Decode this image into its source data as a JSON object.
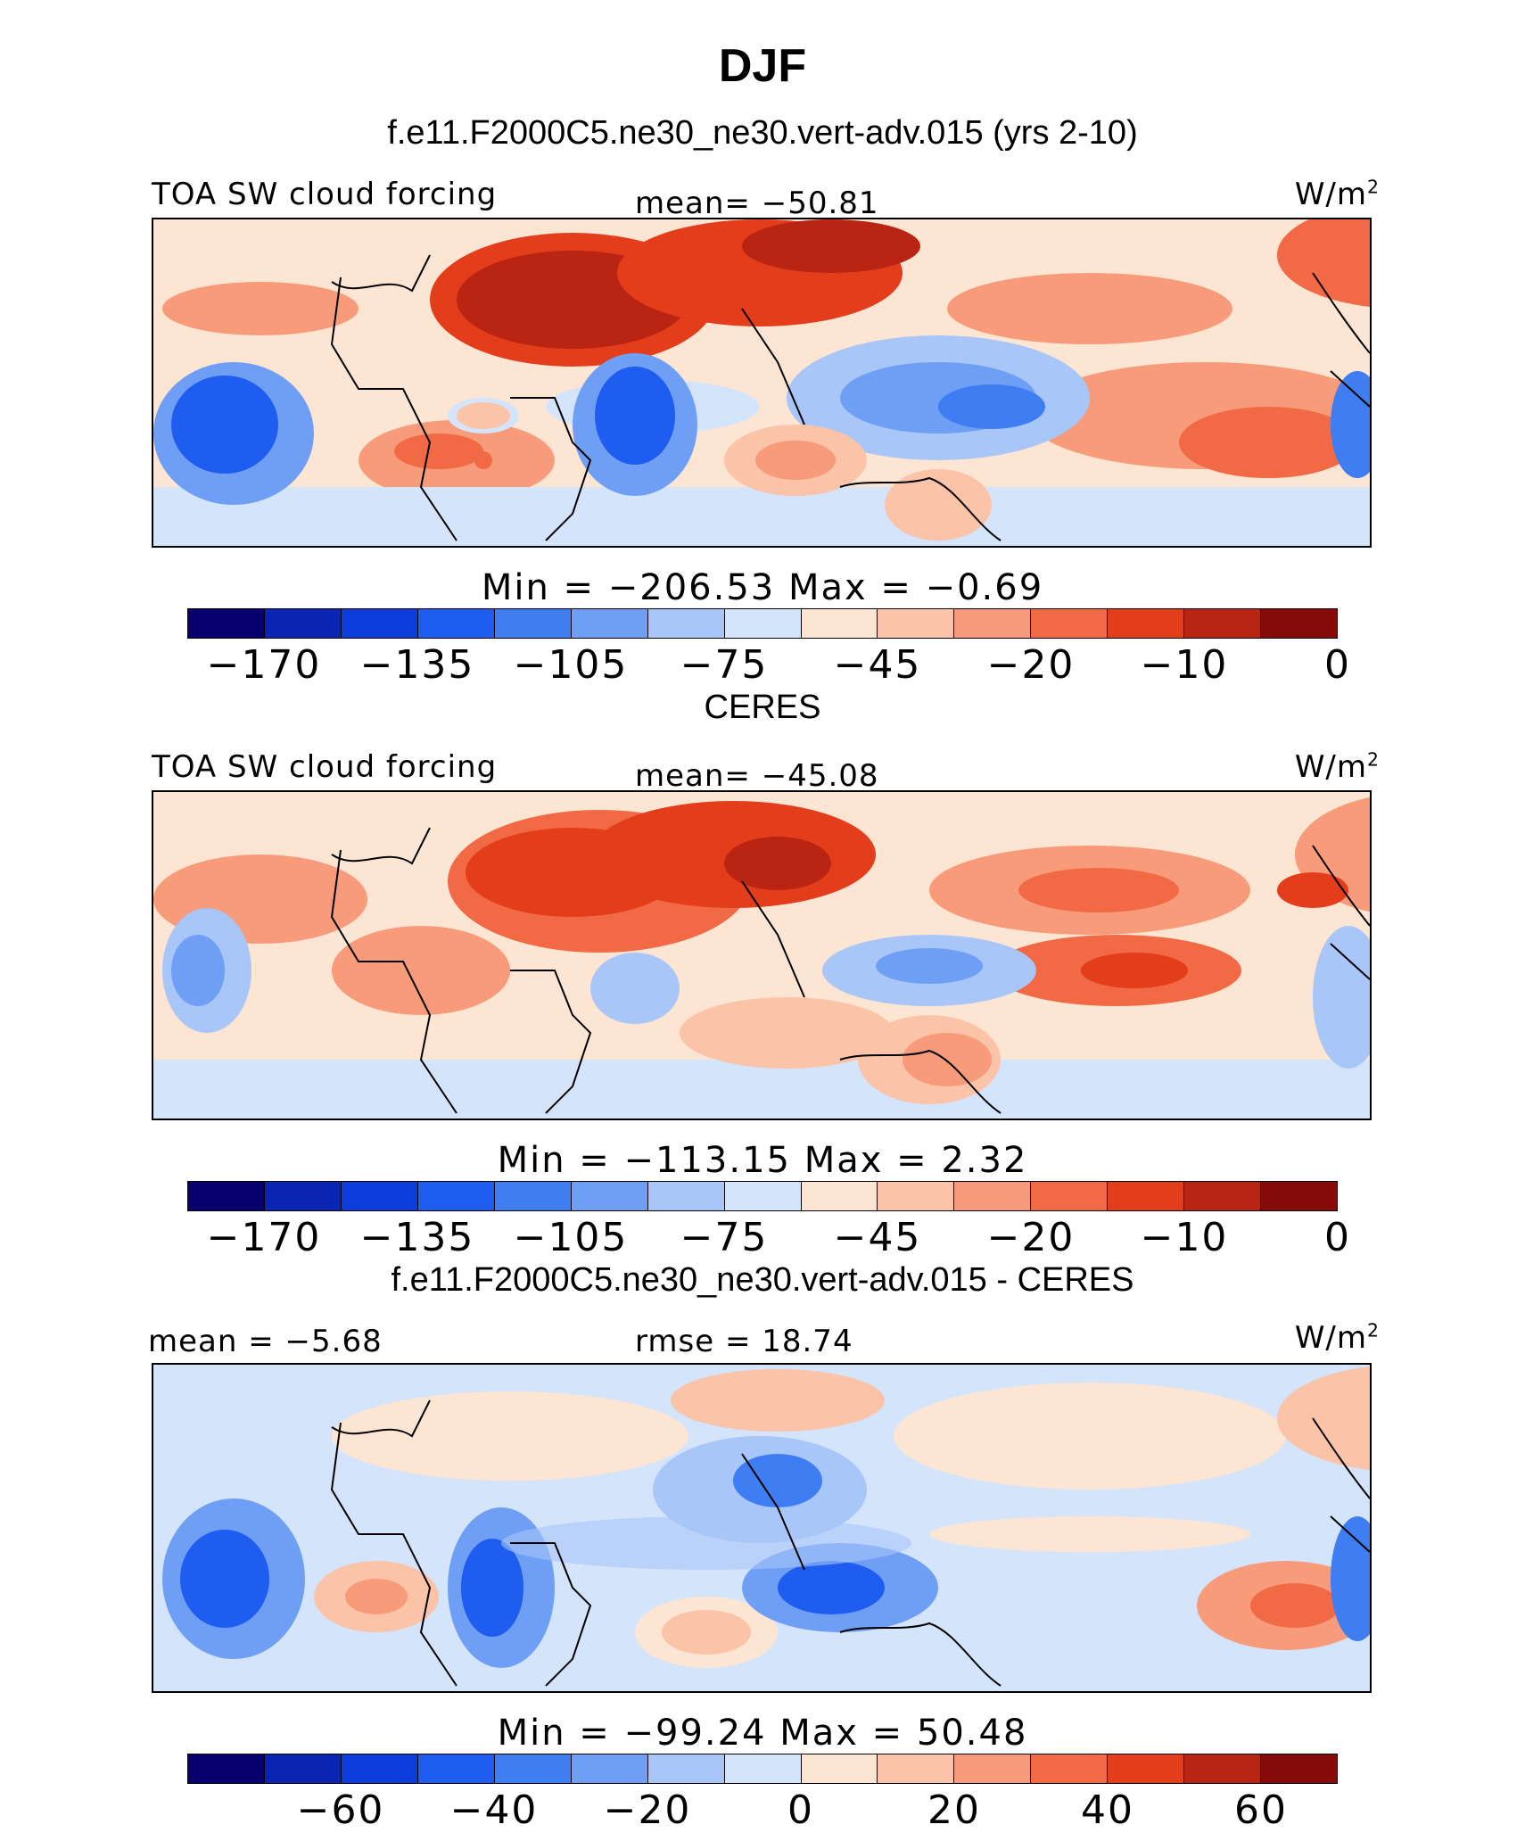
{
  "title": "DJF",
  "panels": [
    {
      "id": "model",
      "subtitle": "f.e11.F2000C5.ne30_ne30.vert-adv.015 (yrs 2-10)",
      "left_label": "TOA SW cloud forcing",
      "center_label": "mean= −50.81",
      "units_base": "W/m",
      "units_exp": "2",
      "min_max": "Min  =  −206.53  Max  =    −0.69",
      "colorbar_ticks": [
        "−170",
        "−135",
        "−105",
        "−75",
        "−45",
        "−20",
        "−10",
        "0"
      ]
    },
    {
      "id": "obs",
      "subtitle": "CERES",
      "left_label": "TOA SW cloud forcing",
      "center_label": "mean= −45.08",
      "units_base": "W/m",
      "units_exp": "2",
      "min_max": "Min  =  −113.15  Max  =     2.32",
      "colorbar_ticks": [
        "−170",
        "−135",
        "−105",
        "−75",
        "−45",
        "−20",
        "−10",
        "0"
      ]
    },
    {
      "id": "diff",
      "subtitle": "f.e11.F2000C5.ne30_ne30.vert-adv.015 - CERES",
      "left_label": "mean =   −5.68",
      "center_label": "rmse  =   18.74",
      "units_base": "W/m",
      "units_exp": "2",
      "min_max": "Min  =  −99.24  Max  =   50.48",
      "colorbar_ticks": [
        "−60",
        "−40",
        "−20",
        "0",
        "20",
        "40",
        "60"
      ]
    }
  ],
  "colors": {
    "palette": [
      "#08006e",
      "#0a24b4",
      "#0d3ddb",
      "#1f5cf0",
      "#3f7ef2",
      "#6f9ff4",
      "#a9c6f8",
      "#d4e4fa",
      "#fde5d4",
      "#fbc3a8",
      "#f79b7b",
      "#f26a45",
      "#e43d1c",
      "#b92413",
      "#860a0a"
    ],
    "diff_palette": [
      "#08006e",
      "#0a24b4",
      "#0d3ddb",
      "#1f5cf0",
      "#3f7ef2",
      "#6f9ff4",
      "#a9c6f8",
      "#d4e4fa",
      "#fde5d4",
      "#fbc3a8",
      "#f79b7b",
      "#f26a45",
      "#e43d1c",
      "#b92413",
      "#860a0a"
    ]
  },
  "chart_data": [
    {
      "type": "heatmap",
      "title": "f.e11.F2000C5.ne30_ne30.vert-adv.015 (yrs 2-10)",
      "variable": "TOA SW cloud forcing",
      "units": "W/m2",
      "mean": -50.81,
      "min": -206.53,
      "max": -0.69,
      "colorbar_levels": [
        -170,
        -135,
        -105,
        -75,
        -45,
        -20,
        -10,
        0
      ]
    },
    {
      "type": "heatmap",
      "title": "CERES",
      "variable": "TOA SW cloud forcing",
      "units": "W/m2",
      "mean": -45.08,
      "min": -113.15,
      "max": 2.32,
      "colorbar_levels": [
        -170,
        -135,
        -105,
        -75,
        -45,
        -20,
        -10,
        0
      ]
    },
    {
      "type": "heatmap",
      "title": "f.e11.F2000C5.ne30_ne30.vert-adv.015 - CERES",
      "units": "W/m2",
      "mean": -5.68,
      "rmse": 18.74,
      "min": -99.24,
      "max": 50.48,
      "colorbar_levels": [
        -60,
        -40,
        -20,
        0,
        20,
        40,
        60
      ]
    }
  ]
}
